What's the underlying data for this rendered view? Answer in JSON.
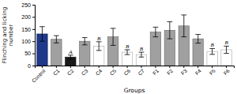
{
  "chart_data": {
    "type": "bar",
    "categories": [
      "Control",
      "C1",
      "C2",
      "C3",
      "C4",
      "C5",
      "C6",
      "C7",
      "F1",
      "F2",
      "F3",
      "F4",
      "F5",
      "F6"
    ],
    "values": [
      130,
      108,
      35,
      100,
      80,
      118,
      55,
      45,
      138,
      145,
      163,
      110,
      58,
      65
    ],
    "errors": [
      30,
      15,
      8,
      15,
      18,
      35,
      10,
      10,
      20,
      35,
      45,
      18,
      12,
      15
    ],
    "colors": [
      "#1f3a8a",
      "#a0a0a0",
      "#1a1a1a",
      "#a0a0a0",
      "#ffffff",
      "#a0a0a0",
      "#ffffff",
      "#ffffff",
      "#a0a0a0",
      "#a0a0a0",
      "#a0a0a0",
      "#a0a0a0",
      "#ffffff",
      "#ffffff"
    ],
    "xlabel": "Groups",
    "ylabel": "Flinching and licking\nnumber",
    "ylim": [
      0,
      250
    ],
    "yticks": [
      0,
      50,
      100,
      150,
      200,
      250
    ],
    "annotations": [
      {
        "text": "A",
        "category": "C2"
      },
      {
        "text": "B",
        "category": "C4"
      },
      {
        "text": "B",
        "category": "C6"
      },
      {
        "text": "B",
        "category": "C7"
      },
      {
        "text": "B",
        "category": "F5"
      },
      {
        "text": "B",
        "category": "F6"
      }
    ]
  }
}
